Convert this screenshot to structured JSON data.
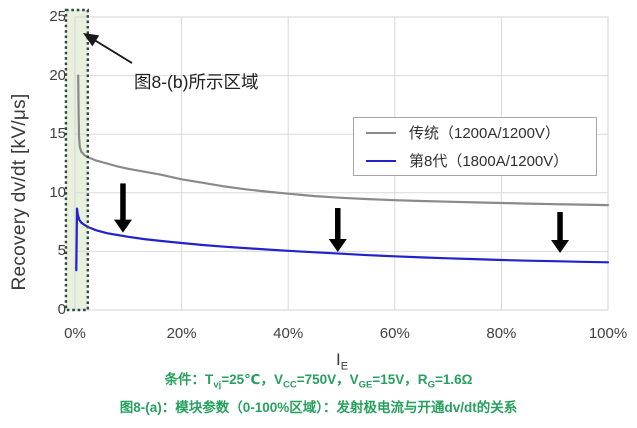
{
  "chart_data": {
    "type": "line",
    "title": "",
    "ylabel": "Recovery dv/dt [kV/μs]",
    "xlabel_base": "I",
    "xlabel_sub": "E",
    "xlim": [
      0,
      100
    ],
    "ylim": [
      0,
      25
    ],
    "grid": true,
    "grid_color": "#d9d9d9",
    "x_ticks": [
      {
        "value": 0,
        "label": "0%"
      },
      {
        "value": 20,
        "label": "20%"
      },
      {
        "value": 40,
        "label": "40%"
      },
      {
        "value": 60,
        "label": "60%"
      },
      {
        "value": 80,
        "label": "80%"
      },
      {
        "value": 100,
        "label": "100%"
      }
    ],
    "y_ticks": [
      {
        "value": 0,
        "label": "0"
      },
      {
        "value": 5,
        "label": "5"
      },
      {
        "value": 10,
        "label": "10"
      },
      {
        "value": 15,
        "label": "15"
      },
      {
        "value": 20,
        "label": "20"
      },
      {
        "value": 25,
        "label": "25"
      }
    ],
    "series": [
      {
        "name": "传统（1200A/1200V）",
        "color": "#8a8a8a",
        "points": [
          [
            0.6,
            20
          ],
          [
            0.68,
            17
          ],
          [
            0.75,
            14.8
          ],
          [
            0.9,
            13.9
          ],
          [
            1.2,
            13.5
          ],
          [
            1.8,
            13.2
          ],
          [
            2.6,
            13.0
          ],
          [
            4,
            12.75
          ],
          [
            6,
            12.5
          ],
          [
            8,
            12.25
          ],
          [
            10,
            12.05
          ],
          [
            13,
            11.8
          ],
          [
            16,
            11.55
          ],
          [
            20,
            11.15
          ],
          [
            24,
            10.85
          ],
          [
            28,
            10.55
          ],
          [
            32,
            10.3
          ],
          [
            36,
            10.1
          ],
          [
            40,
            9.92
          ],
          [
            45,
            9.72
          ],
          [
            50,
            9.57
          ],
          [
            55,
            9.46
          ],
          [
            60,
            9.37
          ],
          [
            65,
            9.3
          ],
          [
            70,
            9.24
          ],
          [
            75,
            9.18
          ],
          [
            80,
            9.13
          ],
          [
            85,
            9.08
          ],
          [
            90,
            9.03
          ],
          [
            95,
            8.99
          ],
          [
            100,
            8.95
          ]
        ]
      },
      {
        "name": "第8代（1800A/1200V）",
        "color": "#2222cc",
        "points": [
          [
            0.25,
            3.4
          ],
          [
            0.3,
            5.5
          ],
          [
            0.38,
            8.65
          ],
          [
            0.55,
            8.1
          ],
          [
            0.8,
            7.7
          ],
          [
            1.2,
            7.45
          ],
          [
            1.8,
            7.25
          ],
          [
            2.6,
            7.05
          ],
          [
            4,
            6.8
          ],
          [
            6,
            6.55
          ],
          [
            8,
            6.4
          ],
          [
            10,
            6.25
          ],
          [
            13,
            6.05
          ],
          [
            16,
            5.9
          ],
          [
            20,
            5.72
          ],
          [
            24,
            5.55
          ],
          [
            28,
            5.4
          ],
          [
            32,
            5.28
          ],
          [
            36,
            5.16
          ],
          [
            40,
            5.05
          ],
          [
            45,
            4.92
          ],
          [
            50,
            4.8
          ],
          [
            55,
            4.68
          ],
          [
            60,
            4.58
          ],
          [
            65,
            4.49
          ],
          [
            70,
            4.41
          ],
          [
            75,
            4.34
          ],
          [
            80,
            4.27
          ],
          [
            85,
            4.21
          ],
          [
            90,
            4.16
          ],
          [
            95,
            4.11
          ],
          [
            100,
            4.07
          ]
        ]
      }
    ],
    "legend_position": "inside-top-right",
    "highlight_region": {
      "x_from_pct": -1.7,
      "x_to_pct": 2.4,
      "fill": "#e9f0dd",
      "border_color": "#2b4a41"
    },
    "down_arrows": [
      {
        "x_pct": 9,
        "y_from": 10.8,
        "y_to": 6.6
      },
      {
        "x_pct": 49.3,
        "y_from": 8.7,
        "y_to": 4.95
      },
      {
        "x_pct": 91,
        "y_from": 8.36,
        "y_to": 4.86
      }
    ],
    "annotation": {
      "text": "图8-(b)所示区域",
      "arrow_from": [
        10.7,
        21.07
      ],
      "arrow_to": [
        1.5,
        23.63
      ],
      "arrow_color": "#1a1a1a"
    }
  },
  "footer": {
    "condition_segments": [
      {
        "t": "条件：T"
      },
      {
        "s": "vj"
      },
      {
        "t": "=25℃，V"
      },
      {
        "s": "CC"
      },
      {
        "t": "=750V，V"
      },
      {
        "s": "GE"
      },
      {
        "t": "=15V，R"
      },
      {
        "s": "G"
      },
      {
        "t": "=1.6Ω"
      }
    ],
    "caption": "图8-(a)：模块参数（0-100%区域）：发射极电流与开通dv/dt的关系",
    "text_color": "#27a05f"
  }
}
